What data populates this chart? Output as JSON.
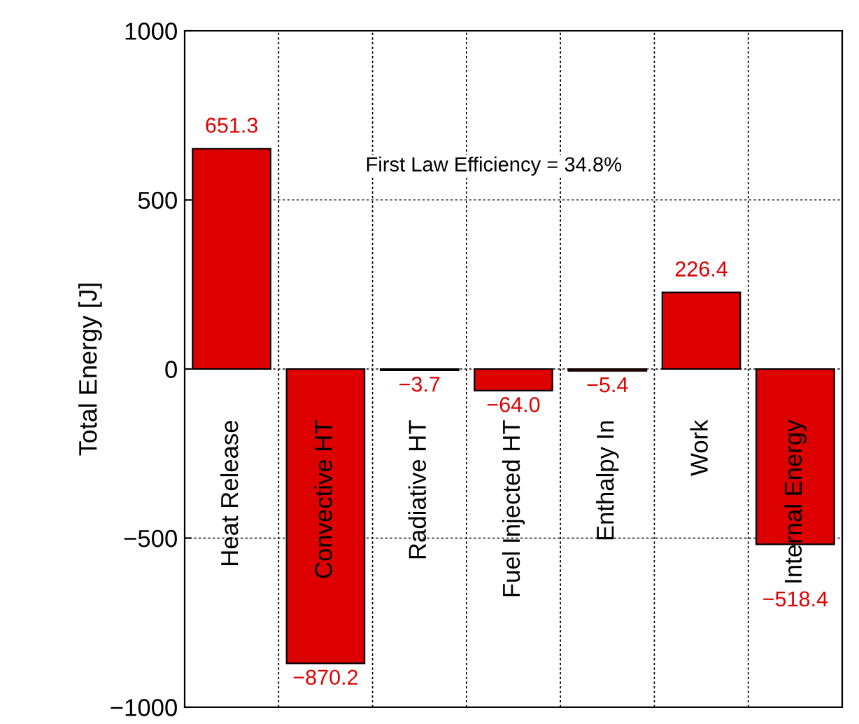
{
  "chart_data": {
    "type": "bar",
    "ylabel": "Total Energy [J]",
    "categories": [
      "Heat Release",
      "Convective HT",
      "Radiative HT",
      "Fuel Injected HT",
      "Enthalpy In",
      "Work",
      "Internal Energy"
    ],
    "values": [
      651.3,
      -870.2,
      -3.7,
      -64.0,
      -5.4,
      226.4,
      -518.4
    ],
    "value_labels": [
      "651.3",
      "−870.2",
      "−3.7",
      "−64.0",
      "−5.4",
      "226.4",
      "−518.4"
    ],
    "color": "#dd0000",
    "ylim": [
      -1000,
      1000
    ],
    "yticks": [
      {
        "value": -1000,
        "label": "−1000"
      },
      {
        "value": -500,
        "label": "−500"
      },
      0,
      500,
      1000
    ],
    "grid": true,
    "annotations": [
      "First Law Efficiency = 34.8%"
    ]
  }
}
